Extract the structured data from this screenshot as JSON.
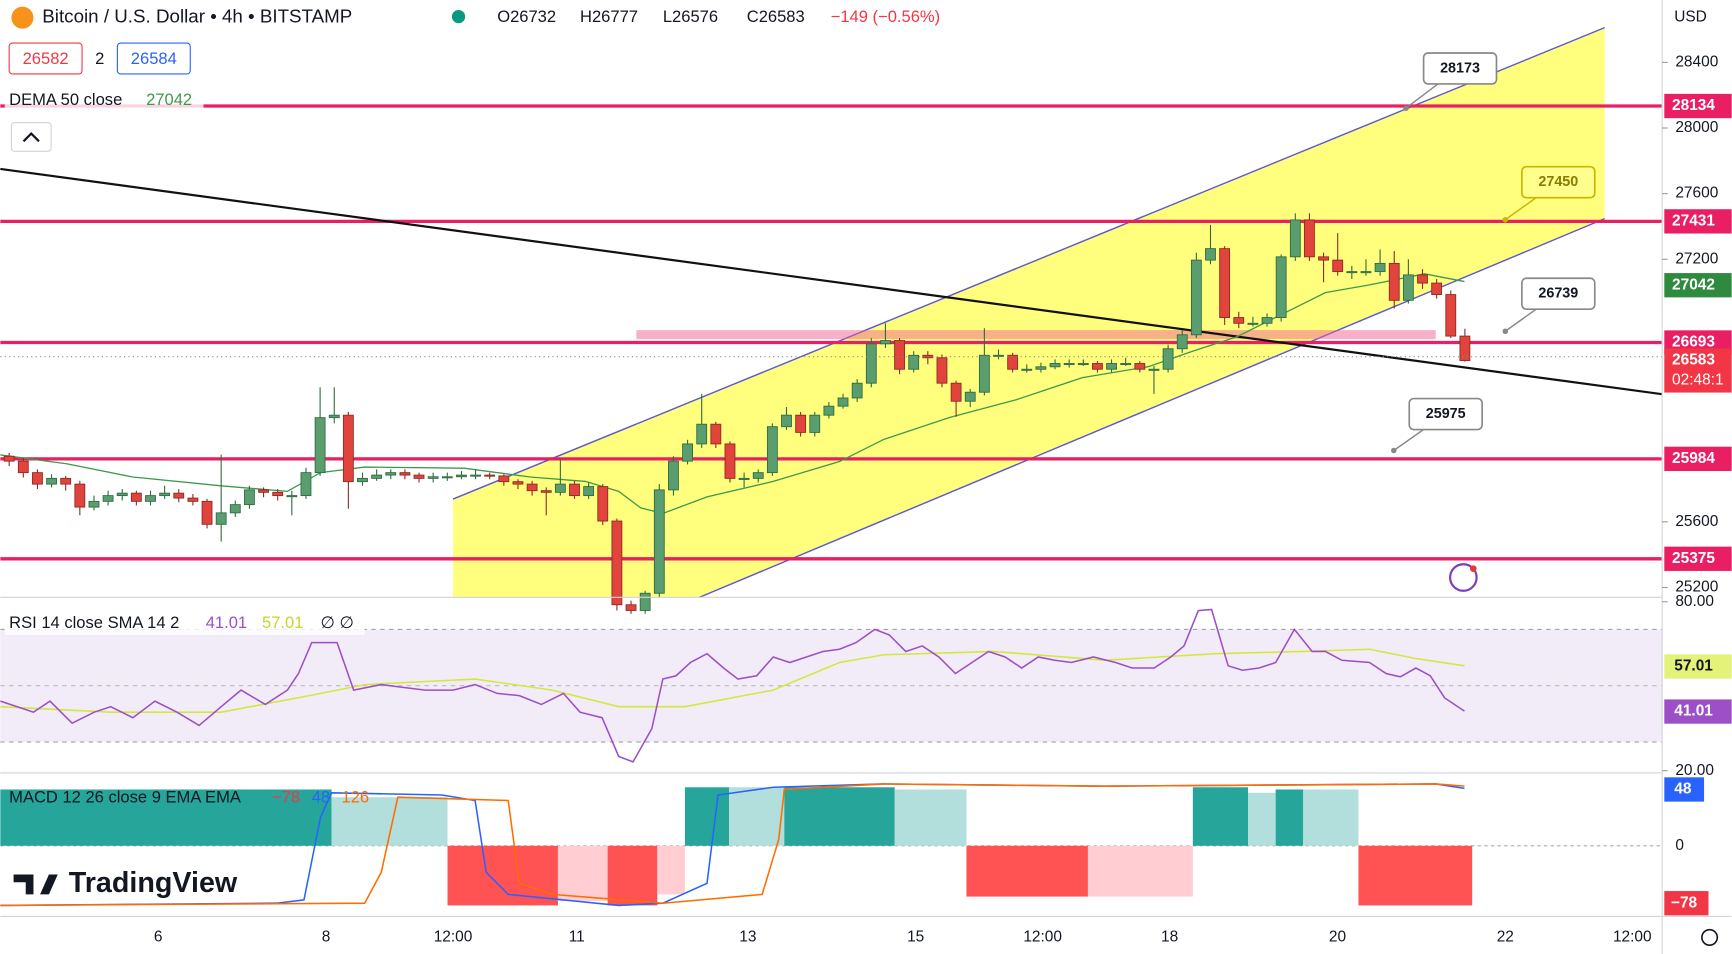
{
  "header": {
    "title": "Bitcoin / U.S. Dollar • 4h • BITSTAMP",
    "quote": [
      "O26732",
      "H26777",
      "L26576",
      "C26583",
      "−149 (−0.56%)"
    ],
    "sell": "26582",
    "spread": "2",
    "buy": "26584",
    "currency": "USD",
    "logo": "TradingView"
  },
  "indicators": {
    "dema": {
      "label": "DEMA 50 close",
      "value": "27042"
    },
    "rsi": {
      "label": "RSI 14 close SMA 14 2",
      "value": "41.01",
      "sma": "57.01",
      "extra": "∅ ∅",
      "ticks": [
        {
          "value": 80,
          "label": "80.00"
        },
        {
          "value": 20,
          "label": "20.00"
        }
      ]
    },
    "macd": {
      "label": "MACD 12 26 close 9 EMA EMA",
      "histogram": "−78",
      "macd": "48",
      "signal": "126",
      "zero": "0"
    }
  },
  "chart_data": {
    "type": "candlestick",
    "ylim": [
      25140,
      28780
    ],
    "yticks": [
      28400,
      28000,
      27600,
      27200,
      25600,
      25200
    ],
    "levels": [
      28134,
      27431,
      26693,
      25984,
      25375
    ],
    "callouts": [
      28173,
      27450,
      26739,
      25975
    ],
    "last_price": 26583,
    "countdown": "02:48:1",
    "x_labels": [
      "6",
      "8",
      "12:00",
      "11",
      "13",
      "15",
      "12:00",
      "18",
      "20",
      "22",
      "12:00"
    ],
    "candles": [
      [
        26000,
        26020,
        25940,
        25970
      ],
      [
        25970,
        25990,
        25870,
        25900
      ],
      [
        25900,
        25920,
        25800,
        25830
      ],
      [
        25830,
        25890,
        25810,
        25865
      ],
      [
        25865,
        25880,
        25790,
        25830
      ],
      [
        25830,
        25850,
        25640,
        25690
      ],
      [
        25690,
        25760,
        25670,
        25725
      ],
      [
        25725,
        25790,
        25700,
        25760
      ],
      [
        25760,
        25800,
        25730,
        25775
      ],
      [
        25775,
        25790,
        25700,
        25725
      ],
      [
        25725,
        25790,
        25700,
        25760
      ],
      [
        25760,
        25820,
        25740,
        25775
      ],
      [
        25775,
        25800,
        25720,
        25745
      ],
      [
        25745,
        25770,
        25700,
        25725
      ],
      [
        25725,
        25740,
        25560,
        25585
      ],
      [
        25585,
        26010,
        25480,
        25655
      ],
      [
        25655,
        25730,
        25630,
        25705
      ],
      [
        25705,
        25820,
        25680,
        25795
      ],
      [
        25795,
        25810,
        25750,
        25780
      ],
      [
        25780,
        25800,
        25730,
        25760
      ],
      [
        25760,
        25790,
        25640,
        25760
      ],
      [
        25760,
        25930,
        25740,
        25900
      ],
      [
        25900,
        26420,
        25880,
        26235
      ],
      [
        26235,
        26420,
        26200,
        26250
      ],
      [
        26250,
        26270,
        25680,
        25845
      ],
      [
        25845,
        25900,
        25820,
        25865
      ],
      [
        25865,
        25920,
        25850,
        25885
      ],
      [
        25885,
        25920,
        25860,
        25900
      ],
      [
        25900,
        25920,
        25860,
        25885
      ],
      [
        25885,
        25900,
        25840,
        25865
      ],
      [
        25865,
        25900,
        25840,
        25875
      ],
      [
        25875,
        25900,
        25850,
        25875
      ],
      [
        25875,
        25910,
        25860,
        25885
      ],
      [
        25885,
        25920,
        25860,
        25885
      ],
      [
        25885,
        25900,
        25860,
        25880
      ],
      [
        25880,
        25890,
        25820,
        25845
      ],
      [
        25845,
        25860,
        25800,
        25830
      ],
      [
        25830,
        25850,
        25760,
        25790
      ],
      [
        25790,
        25810,
        25640,
        25780
      ],
      [
        25780,
        25980,
        25760,
        25830
      ],
      [
        25830,
        25850,
        25740,
        25760
      ],
      [
        25760,
        25840,
        25740,
        25815
      ],
      [
        25815,
        25830,
        25580,
        25605
      ],
      [
        25605,
        25620,
        25060,
        25095
      ],
      [
        25095,
        25120,
        25040,
        25060
      ],
      [
        25060,
        25180,
        25040,
        25165
      ],
      [
        25165,
        25830,
        25140,
        25795
      ],
      [
        25795,
        26000,
        25760,
        25970
      ],
      [
        25970,
        26100,
        25950,
        26075
      ],
      [
        26075,
        26380,
        26050,
        26195
      ],
      [
        26195,
        26210,
        26050,
        26075
      ],
      [
        26075,
        26090,
        25840,
        25865
      ],
      [
        25865,
        25900,
        25810,
        25865
      ],
      [
        25865,
        25920,
        25840,
        25900
      ],
      [
        25900,
        26200,
        25880,
        26180
      ],
      [
        26180,
        26300,
        26160,
        26250
      ],
      [
        26250,
        26270,
        26120,
        26145
      ],
      [
        26145,
        26270,
        26120,
        26250
      ],
      [
        26250,
        26330,
        26230,
        26305
      ],
      [
        26305,
        26380,
        26290,
        26355
      ],
      [
        26355,
        26470,
        26330,
        26445
      ],
      [
        26445,
        26720,
        26420,
        26685
      ],
      [
        26685,
        26810,
        26660,
        26705
      ],
      [
        26705,
        26720,
        26500,
        26530
      ],
      [
        26530,
        26640,
        26510,
        26615
      ],
      [
        26615,
        26640,
        26560,
        26600
      ],
      [
        26600,
        26620,
        26420,
        26445
      ],
      [
        26445,
        26460,
        26240,
        26335
      ],
      [
        26335,
        26410,
        26300,
        26390
      ],
      [
        26390,
        26780,
        26370,
        26615
      ],
      [
        26615,
        26650,
        26590,
        26615
      ],
      [
        26615,
        26630,
        26510,
        26530
      ],
      [
        26530,
        26560,
        26510,
        26530
      ],
      [
        26530,
        26570,
        26510,
        26545
      ],
      [
        26545,
        26590,
        26530,
        26565
      ],
      [
        26565,
        26590,
        26540,
        26565
      ],
      [
        26565,
        26590,
        26550,
        26565
      ],
      [
        26565,
        26580,
        26510,
        26530
      ],
      [
        26530,
        26590,
        26510,
        26565
      ],
      [
        26565,
        26600,
        26550,
        26565
      ],
      [
        26565,
        26580,
        26510,
        26530
      ],
      [
        26530,
        26550,
        26380,
        26530
      ],
      [
        26530,
        26680,
        26510,
        26655
      ],
      [
        26655,
        26770,
        26630,
        26740
      ],
      [
        26740,
        27240,
        26720,
        27195
      ],
      [
        27195,
        27410,
        27170,
        27265
      ],
      [
        27265,
        27280,
        26800,
        26845
      ],
      [
        26845,
        26880,
        26780,
        26810
      ],
      [
        26810,
        26850,
        26790,
        26810
      ],
      [
        26810,
        26870,
        26790,
        26845
      ],
      [
        26845,
        27230,
        26820,
        27215
      ],
      [
        27215,
        27480,
        27190,
        27440
      ],
      [
        27440,
        27480,
        27190,
        27215
      ],
      [
        27215,
        27240,
        27060,
        27195
      ],
      [
        27195,
        27360,
        27100,
        27125
      ],
      [
        27125,
        27160,
        27080,
        27125
      ],
      [
        27125,
        27200,
        27100,
        27125
      ],
      [
        27125,
        27260,
        27100,
        27175
      ],
      [
        27175,
        27250,
        26900,
        26950
      ],
      [
        26950,
        27200,
        26930,
        27105
      ],
      [
        27105,
        27140,
        27020,
        27055
      ],
      [
        27055,
        27080,
        26960,
        26985
      ],
      [
        26985,
        27010,
        26720,
        26732
      ],
      [
        26732,
        26777,
        26576,
        26583
      ]
    ]
  }
}
